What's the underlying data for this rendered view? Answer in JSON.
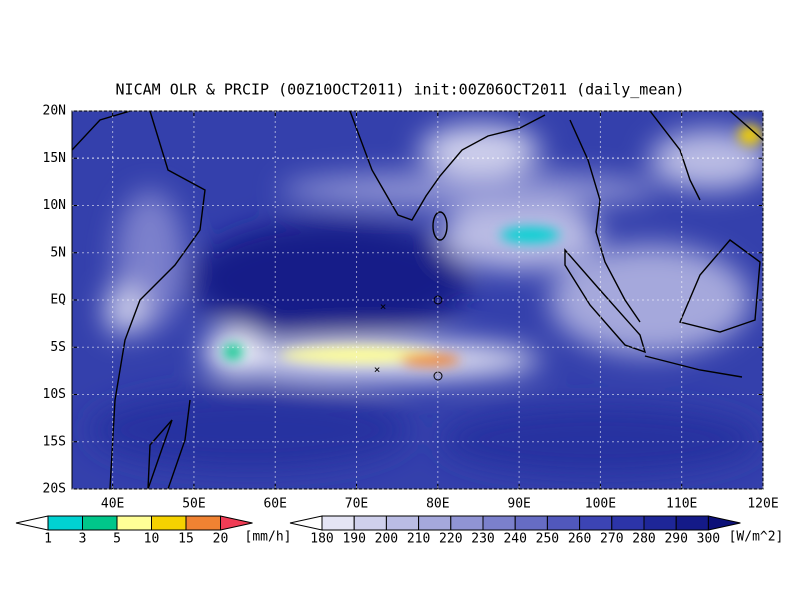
{
  "map": {
    "title": "NICAM OLR & PRCIP (00Z10OCT2011) init:00Z06OCT2011 (daily_mean)",
    "lon_range": [
      35,
      120
    ],
    "lat_range": [
      -20,
      20
    ],
    "lat_ticks": [
      {
        "value": 20,
        "label": "20N"
      },
      {
        "value": 15,
        "label": "15N"
      },
      {
        "value": 10,
        "label": "10N"
      },
      {
        "value": 5,
        "label": "5N"
      },
      {
        "value": 0,
        "label": "EQ"
      },
      {
        "value": -5,
        "label": "5S"
      },
      {
        "value": -10,
        "label": "10S"
      },
      {
        "value": -15,
        "label": "15S"
      },
      {
        "value": -20,
        "label": "20S"
      }
    ],
    "lon_ticks": [
      {
        "value": 40,
        "label": "40E"
      },
      {
        "value": 50,
        "label": "50E"
      },
      {
        "value": 60,
        "label": "60E"
      },
      {
        "value": 70,
        "label": "70E"
      },
      {
        "value": 80,
        "label": "80E"
      },
      {
        "value": 90,
        "label": "90E"
      },
      {
        "value": 100,
        "label": "100E"
      },
      {
        "value": 110,
        "label": "110E"
      },
      {
        "value": 120,
        "label": "120E"
      }
    ],
    "precip_colorbar": {
      "levels": [
        1,
        3,
        5,
        10,
        15,
        20
      ],
      "unit": "[mm/h]",
      "colors": [
        "#ffffff",
        "#00d2d2",
        "#00c68a",
        "#ffff96",
        "#f5d200",
        "#f08232",
        "#f03c55"
      ]
    },
    "olr_colorbar": {
      "levels": [
        180,
        190,
        200,
        210,
        220,
        230,
        240,
        250,
        260,
        270,
        280,
        290,
        300
      ],
      "unit": "[W/m^2]",
      "colors": [
        "#ffffff",
        "#e4e4f4",
        "#cfd0ec",
        "#babce4",
        "#a5a8dc",
        "#9094d4",
        "#7b80cc",
        "#666cc4",
        "#5158bc",
        "#3c44b4",
        "#2c34a8",
        "#1e2698",
        "#141a88",
        "#0c1078"
      ]
    }
  }
}
